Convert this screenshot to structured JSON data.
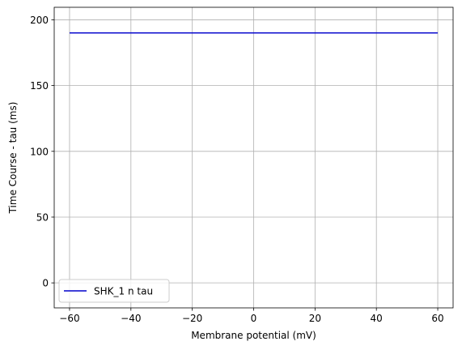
{
  "chart_data": {
    "type": "line",
    "title": "",
    "xlabel": "Membrane potential (mV)",
    "ylabel": "Time Course - tau (ms)",
    "xlim": [
      -65,
      65
    ],
    "ylim": [
      -19,
      209.5
    ],
    "xticks": [
      -60,
      -40,
      -20,
      0,
      20,
      40,
      60
    ],
    "xtick_labels": [
      "−60",
      "−40",
      "−20",
      "0",
      "20",
      "40",
      "60"
    ],
    "yticks": [
      0,
      50,
      100,
      150,
      200
    ],
    "ytick_labels": [
      "0",
      "50",
      "100",
      "150",
      "200"
    ],
    "grid": true,
    "legend": {
      "position": "lower-left"
    },
    "series": [
      {
        "name": "SHK_1 n tau",
        "color": "#0000cc",
        "x": [
          -60,
          60
        ],
        "y": [
          190,
          190
        ]
      }
    ]
  }
}
